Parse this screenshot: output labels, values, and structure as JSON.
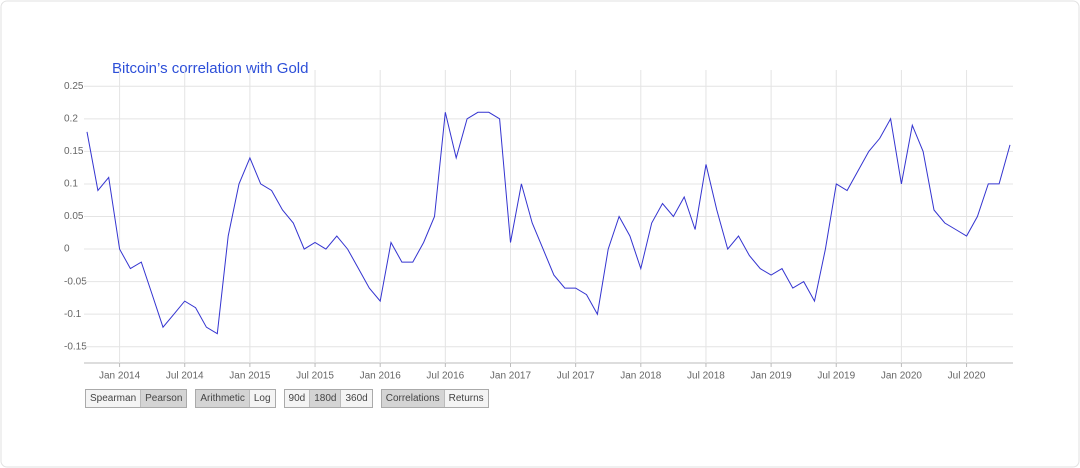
{
  "chart_data": {
    "type": "line",
    "title": "Bitcoin’s correlation with Gold",
    "x": [
      "2013-10",
      "2013-11",
      "2013-12",
      "2014-01",
      "2014-02",
      "2014-03",
      "2014-04",
      "2014-05",
      "2014-06",
      "2014-07",
      "2014-08",
      "2014-09",
      "2014-10",
      "2014-11",
      "2014-12",
      "2015-01",
      "2015-02",
      "2015-03",
      "2015-04",
      "2015-05",
      "2015-06",
      "2015-07",
      "2015-08",
      "2015-09",
      "2015-10",
      "2015-11",
      "2015-12",
      "2016-01",
      "2016-02",
      "2016-03",
      "2016-04",
      "2016-05",
      "2016-06",
      "2016-07",
      "2016-08",
      "2016-09",
      "2016-10",
      "2016-11",
      "2016-12",
      "2017-01",
      "2017-02",
      "2017-03",
      "2017-04",
      "2017-05",
      "2017-06",
      "2017-07",
      "2017-08",
      "2017-09",
      "2017-10",
      "2017-11",
      "2017-12",
      "2018-01",
      "2018-02",
      "2018-03",
      "2018-04",
      "2018-05",
      "2018-06",
      "2018-07",
      "2018-08",
      "2018-09",
      "2018-10",
      "2018-11",
      "2018-12",
      "2019-01",
      "2019-02",
      "2019-03",
      "2019-04",
      "2019-05",
      "2019-06",
      "2019-07",
      "2019-08",
      "2019-09",
      "2019-10",
      "2019-11",
      "2019-12",
      "2020-01",
      "2020-02",
      "2020-03",
      "2020-04",
      "2020-05",
      "2020-06",
      "2020-07",
      "2020-08",
      "2020-09",
      "2020-10",
      "2020-11"
    ],
    "series": [
      {
        "color": "#3434d0",
        "values": [
          0.18,
          0.09,
          0.11,
          0.0,
          -0.03,
          -0.02,
          -0.07,
          -0.12,
          -0.1,
          -0.08,
          -0.09,
          -0.12,
          -0.13,
          0.02,
          0.1,
          0.14,
          0.1,
          0.09,
          0.06,
          0.04,
          0.0,
          0.01,
          0.0,
          0.02,
          0.0,
          -0.03,
          -0.06,
          -0.08,
          0.01,
          -0.02,
          -0.02,
          0.01,
          0.05,
          0.21,
          0.14,
          0.2,
          0.21,
          0.21,
          0.2,
          0.01,
          0.1,
          0.04,
          0.0,
          -0.04,
          -0.06,
          -0.06,
          -0.07,
          -0.1,
          0.0,
          0.05,
          0.02,
          -0.03,
          0.04,
          0.07,
          0.05,
          0.08,
          0.03,
          0.13,
          0.06,
          0.0,
          0.02,
          -0.01,
          -0.03,
          -0.04,
          -0.03,
          -0.06,
          -0.05,
          -0.08,
          0.0,
          0.1,
          0.09,
          0.12,
          0.15,
          0.17,
          0.2,
          0.1,
          0.19,
          0.15,
          0.06,
          0.04,
          0.03,
          0.02,
          0.05,
          0.1,
          0.1,
          0.16
        ]
      }
    ],
    "xlim": [
      "2013-10",
      "2020-11"
    ],
    "xticks": [
      {
        "value": "2014-01",
        "label": "Jan 2014"
      },
      {
        "value": "2014-07",
        "label": "Jul 2014"
      },
      {
        "value": "2015-01",
        "label": "Jan 2015"
      },
      {
        "value": "2015-07",
        "label": "Jul 2015"
      },
      {
        "value": "2016-01",
        "label": "Jan 2016"
      },
      {
        "value": "2016-07",
        "label": "Jul 2016"
      },
      {
        "value": "2017-01",
        "label": "Jan 2017"
      },
      {
        "value": "2017-07",
        "label": "Jul 2017"
      },
      {
        "value": "2018-01",
        "label": "Jan 2018"
      },
      {
        "value": "2018-07",
        "label": "Jul 2018"
      },
      {
        "value": "2019-01",
        "label": "Jan 2019"
      },
      {
        "value": "2019-07",
        "label": "Jul 2019"
      },
      {
        "value": "2020-01",
        "label": "Jan 2020"
      },
      {
        "value": "2020-07",
        "label": "Jul 2020"
      }
    ],
    "ylim": [
      -0.175,
      0.275
    ],
    "yticks": [
      0.25,
      0.2,
      0.15,
      0.1,
      0.05,
      0,
      -0.05,
      -0.1,
      -0.15
    ],
    "grid": true
  },
  "controls": [
    {
      "options": [
        "Spearman",
        "Pearson"
      ],
      "selected": 1
    },
    {
      "options": [
        "Arithmetic",
        "Log"
      ],
      "selected": 0
    },
    {
      "options": [
        "90d",
        "180d",
        "360d"
      ],
      "selected": 1
    },
    {
      "options": [
        "Correlations",
        "Returns"
      ],
      "selected": 0
    }
  ]
}
